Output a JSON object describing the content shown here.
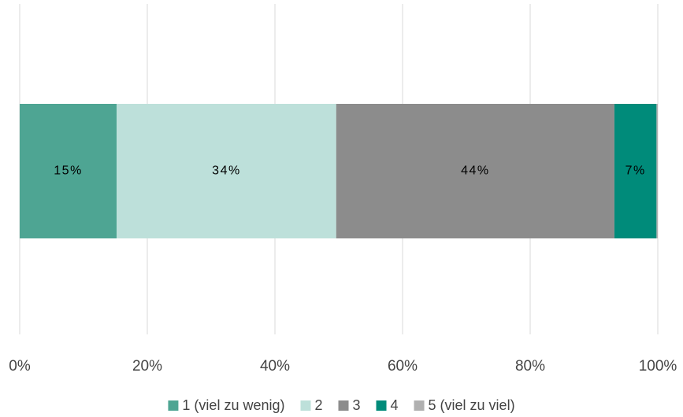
{
  "chart_data": {
    "type": "stacked-bar-horizontal",
    "categories": [
      null
    ],
    "xlim": [
      0,
      100
    ],
    "xticks": [
      {
        "value": 0,
        "label": "0%"
      },
      {
        "value": 20,
        "label": "20%"
      },
      {
        "value": 40,
        "label": "40%"
      },
      {
        "value": 60,
        "label": "60%"
      },
      {
        "value": 80,
        "label": "80%"
      },
      {
        "value": 100,
        "label": "100%"
      }
    ],
    "grid": true,
    "legend": "bottom",
    "series": [
      {
        "name": "1 (viel zu wenig)",
        "color": "#4ea593",
        "values": [
          15.2
        ],
        "value_labels": [
          "15%"
        ]
      },
      {
        "name": "2",
        "color": "#bde0da",
        "values": [
          34.4
        ],
        "value_labels": [
          "34%"
        ]
      },
      {
        "name": "3",
        "color": "#8c8c8c",
        "values": [
          43.6
        ],
        "value_labels": [
          "44%"
        ]
      },
      {
        "name": "4",
        "color": "#008b7a",
        "values": [
          6.6
        ],
        "value_labels": [
          "7%"
        ]
      },
      {
        "name": "5 (viel zu viel)",
        "color": "#b0b0b0",
        "values": [
          0.2
        ]
      }
    ]
  }
}
